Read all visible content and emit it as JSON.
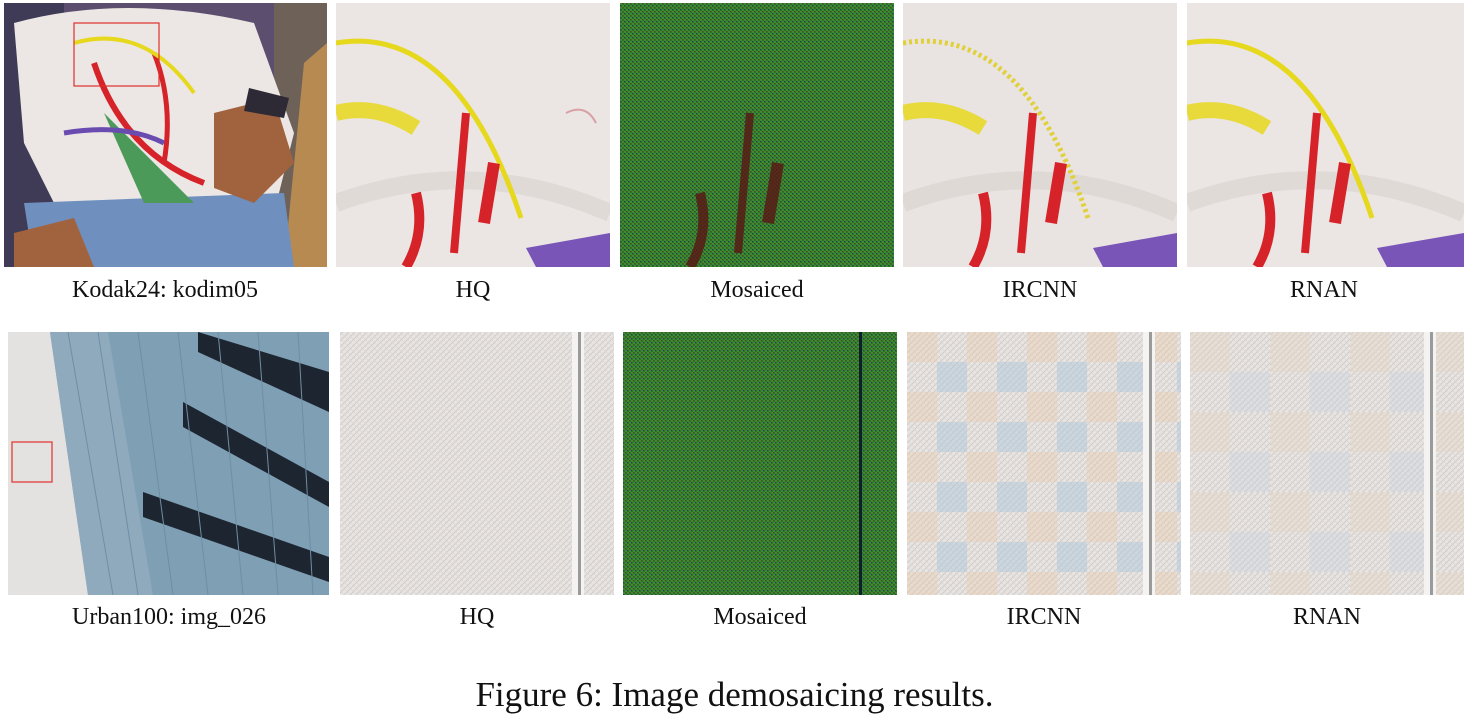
{
  "figure": {
    "caption": "Figure 6: Image demosaicing results."
  },
  "rows": [
    {
      "source_label": "Kodak24: kodim05",
      "method_labels": [
        "HQ",
        "Mosaiced",
        "IRCNN",
        "RNAN"
      ]
    },
    {
      "source_label": "Urban100: img_026",
      "method_labels": [
        "HQ",
        "Mosaiced",
        "IRCNN",
        "RNAN"
      ]
    }
  ],
  "colors": {
    "highlight_box": "#e0302a",
    "mosaic_green": "#2f7a2a",
    "shirt_white": "#ece6e3",
    "paint_red": "#d6232a",
    "paint_yellow": "#e6d81c",
    "paint_purple": "#6a4bb0",
    "facade_blue": "#7f9fb4"
  }
}
